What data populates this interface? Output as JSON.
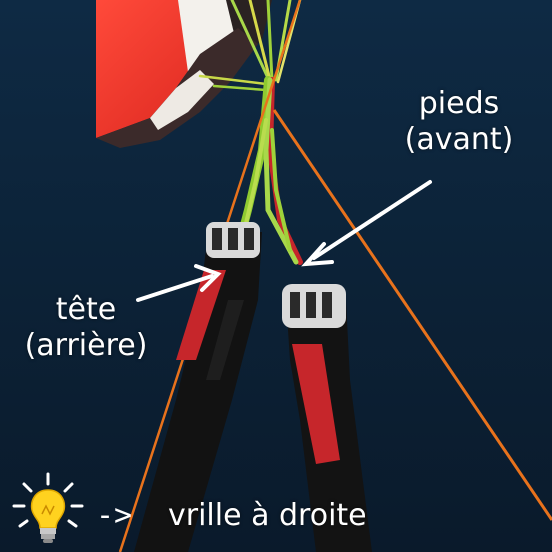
{
  "labels": {
    "front": {
      "line1": "pieds",
      "line2": "(avant)"
    },
    "rear": {
      "line1": "tête",
      "line2": "(arrière)"
    }
  },
  "tip": {
    "arrow": "->",
    "text": "vrille à droite",
    "icon": "lightbulb-icon"
  },
  "colors": {
    "sky": "#0d2236",
    "canopy": "#e8322a",
    "riser_red": "#c6262b",
    "line_orange": "#e8721c",
    "line_green": "#9fd23a",
    "text": "#ffffff",
    "bulb": "#ffd21f"
  }
}
